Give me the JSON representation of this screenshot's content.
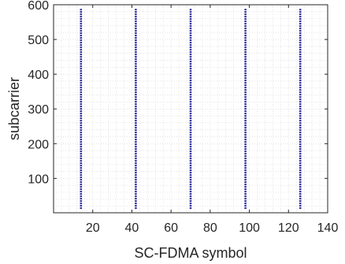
{
  "chart_data": {
    "type": "scatter",
    "xlabel": "SC-FDMA symbol",
    "ylabel": "subcarrier",
    "xlim": [
      0,
      140
    ],
    "ylim": [
      1,
      600
    ],
    "xticks": [
      20,
      40,
      60,
      80,
      100,
      120,
      140
    ],
    "yticks": [
      100,
      200,
      300,
      400,
      500,
      600
    ],
    "grid": "minor dotted",
    "series": [
      {
        "x": [
          14,
          42,
          70,
          98,
          126
        ],
        "y_range": [
          12,
          588
        ],
        "color": "#2b2b9a"
      }
    ]
  }
}
